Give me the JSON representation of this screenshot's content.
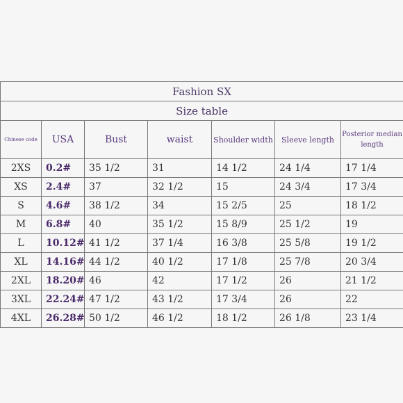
{
  "table": {
    "title": "Fashion SX",
    "subtitle": "Size table",
    "header": [
      "Chinese code",
      "USA",
      "Bust",
      "waist",
      "Shoulder width",
      "Sleeve length",
      "Posterior median length"
    ],
    "rows": [
      [
        "2XS",
        "0.2#",
        "35 1/2",
        "31",
        "14 1/2",
        "24 1/4",
        "17 1/4"
      ],
      [
        "XS",
        "2.4#",
        "37",
        "32 1/2",
        "15",
        "24 3/4",
        "17 3/4"
      ],
      [
        "S",
        "4.6#",
        "38 1/2",
        "34",
        "15 2/5",
        "25",
        "18 1/2"
      ],
      [
        "M",
        "6.8#",
        "40",
        "35 1/2",
        "15 8/9",
        "25 1/2",
        "19"
      ],
      [
        "L",
        "10.12#",
        "41 1/2",
        "37 1/4",
        "16 3/8",
        "25 5/8",
        "19 1/2"
      ],
      [
        "XL",
        "14.16#",
        "44 1/2",
        "40 1/2",
        "17 1/8",
        "25 7/8",
        "20 3/4"
      ],
      [
        "2XL",
        "18.20#",
        "46",
        "42",
        "17 1/2",
        "26",
        "21 1/2"
      ],
      [
        "3XL",
        "22.24#",
        "47 1/2",
        "43 1/2",
        "17 3/4",
        "26",
        "22"
      ],
      [
        "4XL",
        "26.28#",
        "50 1/2",
        "46 1/2",
        "18 1/2",
        "26 1/8",
        "23 1/4"
      ]
    ]
  }
}
